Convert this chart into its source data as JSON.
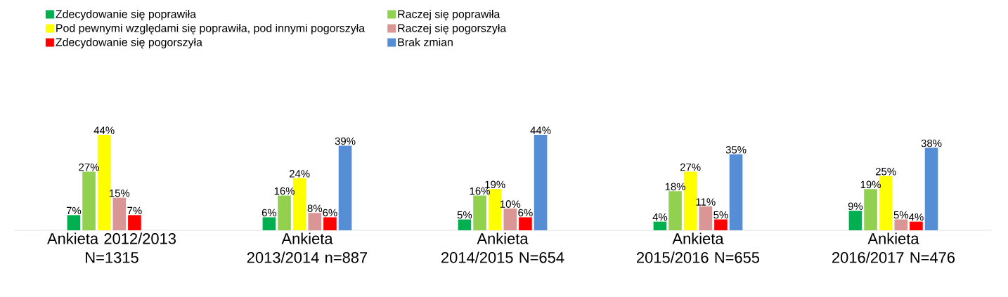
{
  "chart_data": {
    "type": "bar",
    "categories": [
      "Ankieta 2012/2013 N=1315",
      "Ankieta 2013/2014 n=887",
      "Ankieta 2014/2015 N=654",
      "Ankieta 2015/2016 N=655",
      "Ankieta 2016/2017 N=476"
    ],
    "series": [
      {
        "name": "Zdecydowanie się poprawiła",
        "color": "#00b050",
        "values": [
          7,
          6,
          5,
          4,
          9
        ],
        "value_labels": [
          "7%",
          "6%",
          "5%",
          "4%",
          "9%"
        ]
      },
      {
        "name": "Raczej się poprawiła",
        "color": "#92d050",
        "values": [
          27,
          16,
          16,
          18,
          19
        ],
        "value_labels": [
          "27%",
          "16%",
          "16%",
          "18%",
          "19%"
        ]
      },
      {
        "name": "Pod pewnymi względami się poprawiła, pod innymi pogorszyła",
        "color": "#ffff00",
        "values": [
          44,
          24,
          19,
          27,
          25
        ],
        "value_labels": [
          "44%",
          "24%",
          "19%",
          "27%",
          "25%"
        ]
      },
      {
        "name": "Raczej się pogorszyła",
        "color": "#d99694",
        "values": [
          15,
          8,
          10,
          11,
          5
        ],
        "value_labels": [
          "15%",
          "8%",
          "10%",
          "11%",
          "5%"
        ]
      },
      {
        "name": "Zdecydowanie się pogorszyła",
        "color": "#ff0000",
        "values": [
          7,
          6,
          6,
          5,
          4
        ],
        "value_labels": [
          "7%",
          "6%",
          "6%",
          "5%",
          "4%"
        ]
      },
      {
        "name": "Brak zmian",
        "color": "#558ed5",
        "values": [
          null,
          39,
          44,
          35,
          38
        ],
        "value_labels": [
          null,
          "39%",
          "44%",
          "35%",
          "38%"
        ]
      }
    ],
    "legend": "top"
  }
}
